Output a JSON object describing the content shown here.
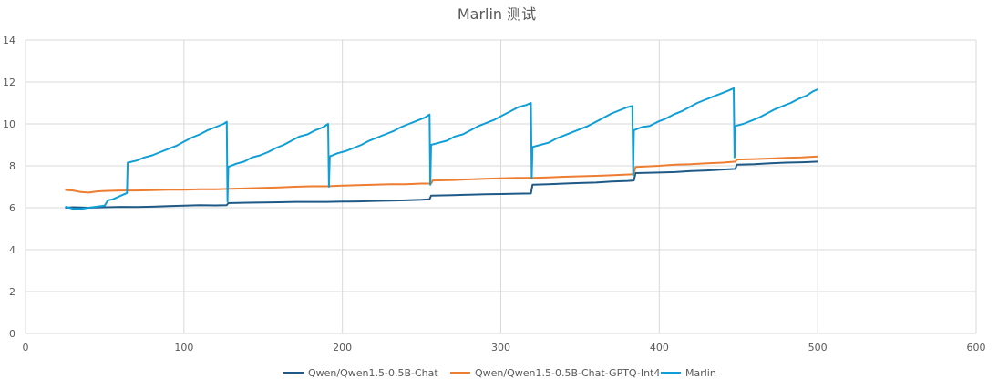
{
  "chart_data": {
    "type": "line",
    "title": "Marlin 测试",
    "xlabel": "",
    "ylabel": "",
    "xlim": [
      0,
      600
    ],
    "ylim": [
      0,
      14
    ],
    "x_ticks": [
      0,
      100,
      200,
      300,
      400,
      500,
      600
    ],
    "y_ticks": [
      0,
      2,
      4,
      6,
      8,
      10,
      12,
      14
    ],
    "grid": true,
    "legend_position": "bottom",
    "series": [
      {
        "name": "Qwen/Qwen1.5-0.5B-Chat",
        "color": "#1F5A86",
        "points": [
          [
            25,
            6.0
          ],
          [
            30,
            6.02
          ],
          [
            40,
            6.0
          ],
          [
            50,
            6.02
          ],
          [
            60,
            6.04
          ],
          [
            70,
            6.03
          ],
          [
            80,
            6.05
          ],
          [
            90,
            6.08
          ],
          [
            100,
            6.1
          ],
          [
            110,
            6.12
          ],
          [
            120,
            6.11
          ],
          [
            127,
            6.12
          ],
          [
            128,
            6.22
          ],
          [
            140,
            6.24
          ],
          [
            150,
            6.25
          ],
          [
            160,
            6.26
          ],
          [
            170,
            6.28
          ],
          [
            180,
            6.28
          ],
          [
            190,
            6.28
          ],
          [
            200,
            6.29
          ],
          [
            210,
            6.3
          ],
          [
            220,
            6.32
          ],
          [
            230,
            6.34
          ],
          [
            240,
            6.35
          ],
          [
            250,
            6.38
          ],
          [
            255,
            6.4
          ],
          [
            256,
            6.58
          ],
          [
            270,
            6.6
          ],
          [
            280,
            6.62
          ],
          [
            290,
            6.64
          ],
          [
            300,
            6.65
          ],
          [
            310,
            6.67
          ],
          [
            319,
            6.68
          ],
          [
            320,
            7.1
          ],
          [
            330,
            7.12
          ],
          [
            340,
            7.15
          ],
          [
            350,
            7.18
          ],
          [
            360,
            7.2
          ],
          [
            370,
            7.25
          ],
          [
            380,
            7.28
          ],
          [
            384,
            7.3
          ],
          [
            385,
            7.65
          ],
          [
            400,
            7.68
          ],
          [
            410,
            7.7
          ],
          [
            420,
            7.75
          ],
          [
            430,
            7.78
          ],
          [
            440,
            7.82
          ],
          [
            448,
            7.85
          ],
          [
            449,
            8.05
          ],
          [
            460,
            8.08
          ],
          [
            470,
            8.12
          ],
          [
            480,
            8.15
          ],
          [
            490,
            8.17
          ],
          [
            500,
            8.2
          ]
        ]
      },
      {
        "name": "Qwen/Qwen1.5-0.5B-Chat-GPTQ-Int4",
        "color": "#ED7D31",
        "points": [
          [
            25,
            6.85
          ],
          [
            30,
            6.82
          ],
          [
            35,
            6.75
          ],
          [
            40,
            6.72
          ],
          [
            45,
            6.78
          ],
          [
            50,
            6.8
          ],
          [
            60,
            6.82
          ],
          [
            70,
            6.82
          ],
          [
            80,
            6.84
          ],
          [
            90,
            6.86
          ],
          [
            100,
            6.86
          ],
          [
            110,
            6.88
          ],
          [
            120,
            6.88
          ],
          [
            130,
            6.9
          ],
          [
            140,
            6.92
          ],
          [
            150,
            6.95
          ],
          [
            160,
            6.97
          ],
          [
            170,
            7.0
          ],
          [
            180,
            7.02
          ],
          [
            190,
            7.02
          ],
          [
            200,
            7.05
          ],
          [
            210,
            7.08
          ],
          [
            220,
            7.1
          ],
          [
            230,
            7.12
          ],
          [
            240,
            7.12
          ],
          [
            250,
            7.15
          ],
          [
            256,
            7.15
          ],
          [
            257,
            7.3
          ],
          [
            270,
            7.32
          ],
          [
            280,
            7.35
          ],
          [
            290,
            7.38
          ],
          [
            300,
            7.4
          ],
          [
            310,
            7.42
          ],
          [
            320,
            7.42
          ],
          [
            330,
            7.45
          ],
          [
            340,
            7.48
          ],
          [
            350,
            7.5
          ],
          [
            360,
            7.52
          ],
          [
            370,
            7.55
          ],
          [
            384,
            7.6
          ],
          [
            385,
            7.95
          ],
          [
            400,
            8.0
          ],
          [
            410,
            8.05
          ],
          [
            420,
            8.08
          ],
          [
            430,
            8.12
          ],
          [
            440,
            8.15
          ],
          [
            448,
            8.2
          ],
          [
            449,
            8.3
          ],
          [
            460,
            8.32
          ],
          [
            470,
            8.35
          ],
          [
            480,
            8.38
          ],
          [
            490,
            8.4
          ],
          [
            500,
            8.45
          ]
        ]
      },
      {
        "name": "Marlin",
        "color": "#0F9ED5",
        "points": [
          [
            25,
            6.05
          ],
          [
            30,
            5.95
          ],
          [
            35,
            5.95
          ],
          [
            40,
            6.0
          ],
          [
            45,
            6.05
          ],
          [
            50,
            6.1
          ],
          [
            52,
            6.35
          ],
          [
            55,
            6.4
          ],
          [
            58,
            6.5
          ],
          [
            61,
            6.6
          ],
          [
            64,
            6.7
          ],
          [
            64.5,
            8.15
          ],
          [
            70,
            8.25
          ],
          [
            75,
            8.4
          ],
          [
            80,
            8.5
          ],
          [
            85,
            8.65
          ],
          [
            90,
            8.8
          ],
          [
            95,
            8.95
          ],
          [
            100,
            9.15
          ],
          [
            105,
            9.35
          ],
          [
            110,
            9.5
          ],
          [
            115,
            9.7
          ],
          [
            120,
            9.85
          ],
          [
            125,
            10.0
          ],
          [
            127,
            10.1
          ],
          [
            127.5,
            6.3
          ],
          [
            128,
            7.95
          ],
          [
            133,
            8.1
          ],
          [
            138,
            8.2
          ],
          [
            143,
            8.4
          ],
          [
            148,
            8.5
          ],
          [
            153,
            8.65
          ],
          [
            158,
            8.85
          ],
          [
            163,
            9.0
          ],
          [
            168,
            9.2
          ],
          [
            173,
            9.4
          ],
          [
            178,
            9.5
          ],
          [
            183,
            9.7
          ],
          [
            188,
            9.85
          ],
          [
            191,
            10.0
          ],
          [
            191.5,
            7.0
          ],
          [
            192,
            8.45
          ],
          [
            197,
            8.6
          ],
          [
            202,
            8.7
          ],
          [
            207,
            8.85
          ],
          [
            212,
            9.0
          ],
          [
            217,
            9.2
          ],
          [
            222,
            9.35
          ],
          [
            227,
            9.5
          ],
          [
            232,
            9.65
          ],
          [
            237,
            9.85
          ],
          [
            242,
            10.0
          ],
          [
            247,
            10.15
          ],
          [
            252,
            10.3
          ],
          [
            255,
            10.45
          ],
          [
            255.5,
            7.1
          ],
          [
            256,
            9.0
          ],
          [
            261,
            9.1
          ],
          [
            266,
            9.2
          ],
          [
            271,
            9.4
          ],
          [
            276,
            9.5
          ],
          [
            281,
            9.7
          ],
          [
            286,
            9.9
          ],
          [
            291,
            10.05
          ],
          [
            296,
            10.2
          ],
          [
            301,
            10.4
          ],
          [
            306,
            10.6
          ],
          [
            311,
            10.8
          ],
          [
            316,
            10.9
          ],
          [
            319,
            11.0
          ],
          [
            319.5,
            7.4
          ],
          [
            320,
            8.9
          ],
          [
            325,
            9.0
          ],
          [
            330,
            9.1
          ],
          [
            335,
            9.3
          ],
          [
            340,
            9.45
          ],
          [
            345,
            9.6
          ],
          [
            350,
            9.75
          ],
          [
            355,
            9.9
          ],
          [
            360,
            10.1
          ],
          [
            365,
            10.3
          ],
          [
            370,
            10.5
          ],
          [
            375,
            10.65
          ],
          [
            380,
            10.8
          ],
          [
            383,
            10.85
          ],
          [
            383.5,
            7.55
          ],
          [
            384,
            9.7
          ],
          [
            389,
            9.85
          ],
          [
            394,
            9.9
          ],
          [
            399,
            10.1
          ],
          [
            404,
            10.25
          ],
          [
            409,
            10.45
          ],
          [
            414,
            10.6
          ],
          [
            419,
            10.8
          ],
          [
            424,
            11.0
          ],
          [
            429,
            11.15
          ],
          [
            434,
            11.3
          ],
          [
            439,
            11.45
          ],
          [
            444,
            11.6
          ],
          [
            447,
            11.7
          ],
          [
            447.5,
            8.4
          ],
          [
            448,
            9.9
          ],
          [
            453,
            10.0
          ],
          [
            458,
            10.15
          ],
          [
            463,
            10.3
          ],
          [
            468,
            10.5
          ],
          [
            473,
            10.7
          ],
          [
            478,
            10.85
          ],
          [
            483,
            11.0
          ],
          [
            488,
            11.2
          ],
          [
            493,
            11.35
          ],
          [
            497,
            11.55
          ],
          [
            500,
            11.65
          ]
        ]
      }
    ]
  }
}
